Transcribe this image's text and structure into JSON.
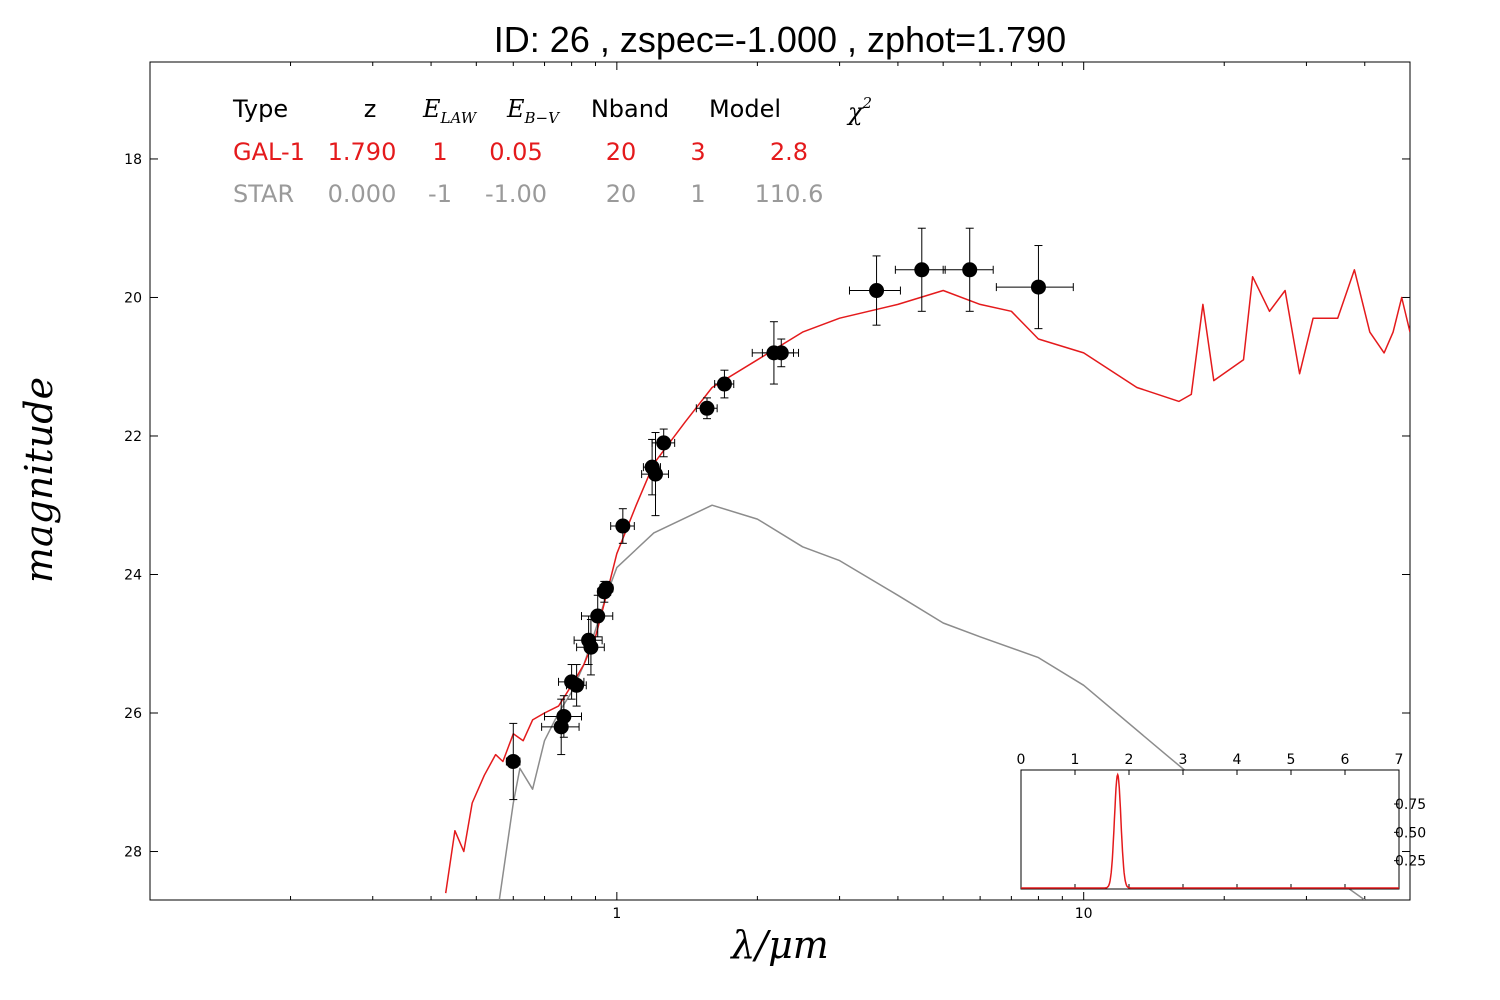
{
  "title": "ID:  26    , zspec=-1.000 , zphot=1.790",
  "colors": {
    "galaxy": "#e41a1c",
    "star": "#8c8c8c",
    "points": "#000000"
  },
  "table": {
    "headers": {
      "type": "Type",
      "z": "z",
      "elaw_main": "E",
      "elaw_sub": "LAW",
      "ebv_main": "E",
      "ebv_sub": "B−V",
      "nband": "Nband",
      "model": "Model",
      "chi2_main": "χ",
      "chi2_sup": "2"
    },
    "rows": [
      {
        "type": "GAL-1",
        "z": "1.790",
        "elaw": "1",
        "ebv": "0.05",
        "nband": "20",
        "model": "3",
        "chi2": "2.8",
        "color": "#e41a1c"
      },
      {
        "type": "STAR",
        "z": "0.000",
        "elaw": "-1",
        "ebv": "-1.00",
        "nband": "20",
        "model": "1",
        "chi2": "110.6",
        "color": "#9a9a9a"
      }
    ]
  },
  "chart_data": [
    {
      "type": "line",
      "xlabel": "λ/μm",
      "ylabel": "magnitude",
      "xscale": "log",
      "xlim": [
        0.1,
        50
      ],
      "ylim": [
        28.7,
        16.6
      ],
      "x_ticks": [
        "1",
        "10"
      ],
      "y_ticks": [
        "18",
        "20",
        "22",
        "24",
        "26",
        "28"
      ],
      "series": [
        {
          "name": "GAL-1",
          "color": "#e41a1c",
          "points": [
            [
              0.43,
              28.6
            ],
            [
              0.45,
              27.7
            ],
            [
              0.47,
              28.0
            ],
            [
              0.49,
              27.3
            ],
            [
              0.52,
              26.9
            ],
            [
              0.55,
              26.6
            ],
            [
              0.57,
              26.7
            ],
            [
              0.6,
              26.3
            ],
            [
              0.63,
              26.4
            ],
            [
              0.66,
              26.1
            ],
            [
              0.7,
              26.0
            ],
            [
              0.75,
              25.9
            ],
            [
              0.8,
              25.6
            ],
            [
              0.85,
              25.3
            ],
            [
              0.9,
              24.9
            ],
            [
              0.95,
              24.3
            ],
            [
              1.0,
              23.7
            ],
            [
              1.1,
              23.0
            ],
            [
              1.2,
              22.4
            ],
            [
              1.4,
              21.8
            ],
            [
              1.6,
              21.3
            ],
            [
              2.0,
              20.9
            ],
            [
              2.5,
              20.5
            ],
            [
              3.0,
              20.3
            ],
            [
              4.0,
              20.1
            ],
            [
              5.0,
              19.9
            ],
            [
              6.0,
              20.1
            ],
            [
              7.0,
              20.2
            ],
            [
              8.0,
              20.6
            ],
            [
              10.0,
              20.8
            ],
            [
              13.0,
              21.3
            ],
            [
              16.0,
              21.5
            ],
            [
              17.0,
              21.4
            ],
            [
              18.0,
              20.1
            ],
            [
              19.0,
              21.2
            ],
            [
              22.0,
              20.9
            ],
            [
              23.0,
              19.7
            ],
            [
              25.0,
              20.2
            ],
            [
              27.0,
              19.9
            ],
            [
              29.0,
              21.1
            ],
            [
              31.0,
              20.3
            ],
            [
              35.0,
              20.3
            ],
            [
              38.0,
              19.6
            ],
            [
              41.0,
              20.5
            ],
            [
              44.0,
              20.8
            ],
            [
              46.0,
              20.5
            ],
            [
              48.0,
              20.0
            ],
            [
              50.0,
              20.5
            ]
          ]
        },
        {
          "name": "STAR",
          "color": "#8c8c8c",
          "points": [
            [
              0.56,
              28.7
            ],
            [
              0.6,
              27.3
            ],
            [
              0.62,
              26.8
            ],
            [
              0.66,
              27.1
            ],
            [
              0.7,
              26.4
            ],
            [
              0.75,
              26.0
            ],
            [
              0.8,
              25.7
            ],
            [
              0.85,
              25.3
            ],
            [
              0.9,
              24.8
            ],
            [
              0.95,
              24.3
            ],
            [
              1.0,
              23.9
            ],
            [
              1.2,
              23.4
            ],
            [
              1.6,
              23.0
            ],
            [
              2.0,
              23.2
            ],
            [
              2.5,
              23.6
            ],
            [
              3.0,
              23.8
            ],
            [
              4.0,
              24.3
            ],
            [
              5.0,
              24.7
            ],
            [
              6.0,
              24.9
            ],
            [
              8.0,
              25.2
            ],
            [
              10.0,
              25.6
            ],
            [
              15.0,
              26.6
            ],
            [
              20.0,
              27.3
            ],
            [
              30.0,
              28.1
            ],
            [
              40.0,
              28.7
            ]
          ]
        }
      ],
      "points": [
        {
          "x": 0.6,
          "y": 26.7,
          "xerr": 0.02,
          "yerr": 0.55
        },
        {
          "x": 0.76,
          "y": 26.2,
          "xerr": 0.07,
          "yerr": 0.4
        },
        {
          "x": 0.77,
          "y": 26.05,
          "xerr": 0.07,
          "yerr": 0.3
        },
        {
          "x": 0.8,
          "y": 25.55,
          "xerr": 0.05,
          "yerr": 0.25
        },
        {
          "x": 0.82,
          "y": 25.6,
          "xerr": 0.04,
          "yerr": 0.3
        },
        {
          "x": 0.87,
          "y": 24.95,
          "xerr": 0.06,
          "yerr": 0.35
        },
        {
          "x": 0.88,
          "y": 25.05,
          "xerr": 0.06,
          "yerr": 0.4
        },
        {
          "x": 0.91,
          "y": 24.6,
          "xerr": 0.07,
          "yerr": 0.3
        },
        {
          "x": 0.94,
          "y": 24.25,
          "xerr": 0.03,
          "yerr": 0.15
        },
        {
          "x": 0.95,
          "y": 24.2,
          "xerr": 0.03,
          "yerr": 0.1
        },
        {
          "x": 1.03,
          "y": 23.3,
          "xerr": 0.06,
          "yerr": 0.25
        },
        {
          "x": 1.19,
          "y": 22.45,
          "xerr": 0.05,
          "yerr": 0.4
        },
        {
          "x": 1.21,
          "y": 22.55,
          "xerr": 0.08,
          "yerr": 0.6
        },
        {
          "x": 1.26,
          "y": 22.1,
          "xerr": 0.07,
          "yerr": 0.2
        },
        {
          "x": 1.56,
          "y": 21.6,
          "xerr": 0.08,
          "yerr": 0.15
        },
        {
          "x": 1.7,
          "y": 21.25,
          "xerr": 0.08,
          "yerr": 0.2
        },
        {
          "x": 2.17,
          "y": 20.8,
          "xerr": 0.22,
          "yerr": 0.45
        },
        {
          "x": 2.25,
          "y": 20.8,
          "xerr": 0.2,
          "yerr": 0.2
        },
        {
          "x": 3.6,
          "y": 19.9,
          "xerr": 0.45,
          "yerr": 0.5
        },
        {
          "x": 4.5,
          "y": 19.6,
          "xerr": 0.55,
          "yerr": 0.6
        },
        {
          "x": 5.7,
          "y": 19.6,
          "xerr": 0.7,
          "yerr": 0.6
        },
        {
          "x": 8.0,
          "y": 19.85,
          "xerr": 1.5,
          "yerr": 0.6
        }
      ]
    },
    {
      "type": "line",
      "name": "zphot PDF",
      "color": "#e41a1c",
      "xlim": [
        0,
        7
      ],
      "ylim": [
        0,
        1.05
      ],
      "x_ticks": [
        "0",
        "1",
        "2",
        "3",
        "4",
        "5",
        "6",
        "7"
      ],
      "y_ticks": [
        "0.25",
        "0.50",
        "0.75"
      ],
      "peak": 1.79,
      "sigma": 0.06,
      "amplitude": 1.0
    }
  ]
}
